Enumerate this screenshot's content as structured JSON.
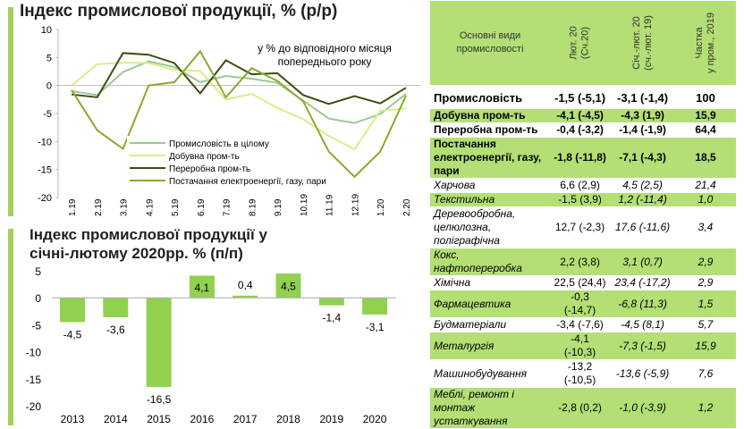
{
  "line_chart_title": "Індекс промислової продукції, % (р/р)",
  "bar_chart_title_line1": "Індекс промислової продукції у",
  "bar_chart_title_line2": "січні-лютому 2020рр. % (п/п)",
  "chart_data": [
    {
      "type": "line",
      "title": "Індекс промислової продукції, % (р/р)",
      "annotation": "у % до відповідного місяця попереднього року",
      "annotation_line1": "у % до відповідного місяця",
      "annotation_line2": "попереднього року",
      "x": [
        "1.19",
        "2.19",
        "3.19",
        "4.19",
        "5.19",
        "6.19",
        "7.19",
        "8.19",
        "9.19",
        "10.19",
        "11.19",
        "12.19",
        "1.20",
        "2.20"
      ],
      "ylim": [
        -20,
        10
      ],
      "yticks": [
        10,
        5,
        0,
        -5,
        -10,
        -15,
        -20
      ],
      "legend": "center-left",
      "series": [
        {
          "name": "Промисловість в цілому",
          "color": "#9dc98f",
          "values": [
            -1.0,
            -1.7,
            2.4,
            4.3,
            3.3,
            0.6,
            1.7,
            1.2,
            0.5,
            -2.7,
            -5.9,
            -6.7,
            -5.1,
            -1.5
          ]
        },
        {
          "name": "Добувна пром-ть",
          "color": "#d7ef8a",
          "values": [
            0.0,
            3.8,
            4.1,
            4.0,
            2.8,
            2.6,
            -2.5,
            -1.5,
            -4.0,
            -6.0,
            -9.0,
            -11.4,
            -4.5,
            -4.1
          ]
        },
        {
          "name": "Переробна пром-ть",
          "color": "#3b4d12",
          "values": [
            -1.6,
            -2.1,
            5.8,
            5.5,
            4.0,
            -1.4,
            4.5,
            2.0,
            2.2,
            -1.7,
            -3.3,
            -1.9,
            -3.2,
            -0.4
          ]
        },
        {
          "name": "Постачання електроенергії, газу, пари",
          "color": "#8aaa2c",
          "values": [
            -0.8,
            -8.0,
            -11.3,
            0.0,
            0.6,
            6.1,
            -2.1,
            3.1,
            0.8,
            -2.8,
            -11.8,
            -16.3,
            -11.8,
            -1.8
          ]
        }
      ]
    },
    {
      "type": "bar",
      "title": "Індекс промислової продукції у січні-лютому 2020рр. % (п/п)",
      "categories": [
        "2013",
        "2014",
        "2015",
        "2016",
        "2017",
        "2018",
        "2019",
        "2020"
      ],
      "values": [
        -4.5,
        -3.6,
        -16.5,
        4.1,
        0.4,
        4.5,
        -1.4,
        -3.1
      ],
      "labels": [
        "-4,5",
        "-3,6",
        "-16,5",
        "4,1",
        "0,4",
        "4,5",
        "-1,4",
        "-3,1"
      ],
      "ylim": [
        -20,
        5
      ],
      "yticks": [
        5,
        0,
        -5,
        -10,
        -15,
        -20
      ],
      "color": "#92d050"
    }
  ],
  "table": {
    "headers": [
      "Основні види промисловості",
      "Лют. 20\n(Сч.20)",
      "Січ.-лют. 20\n(сч.-лют. 19)",
      "Частка\nу пром., 2019"
    ],
    "rows": [
      {
        "name": "Промисловість",
        "c1": "-1,5 (-5,1)",
        "c2": "-3,1 (-1,4)",
        "c3": "100",
        "style": "b",
        "bg": "w"
      },
      {
        "name": "Добувна пром-ть",
        "c1": "-4,1 (-4,5)",
        "c2": "-4,3 (1,9)",
        "c3": "15,9",
        "style": "b",
        "bg": "g"
      },
      {
        "name": "Переробна пром-ть",
        "c1": "-0,4 (-3,2)",
        "c2": "-1,4 (-1,9)",
        "c3": "64,4",
        "style": "b",
        "bg": "w"
      },
      {
        "name": "Постачання електроенергії, газу, пари",
        "c1": "-1,8 (-11,8)",
        "c2": "-7,1 (-4,3)",
        "c3": "18,5",
        "style": "b",
        "bg": "g"
      },
      {
        "name": "Харчова",
        "c1": "6,6 (2,9)",
        "c2": "4,5 (2,5)",
        "c3": "21,4",
        "style": "i",
        "bg": "w"
      },
      {
        "name": "Текстильна",
        "c1": "-1,5 (3,9)",
        "c2": "1,2 (-11,4)",
        "c3": "1,0",
        "style": "i",
        "bg": "g"
      },
      {
        "name": "Деревообробна, целюлозна, поліграфічна",
        "c1": "12,7 (-2,3)",
        "c2": "17,6 (-11,6)",
        "c3": "3,4",
        "style": "i",
        "bg": "w"
      },
      {
        "name": "Кокс, нафтопереробка",
        "c1": "2,2 (3,8)",
        "c2": "3,1 (0,7)",
        "c3": "2,9",
        "style": "i",
        "bg": "g"
      },
      {
        "name": "Хімічна",
        "c1": "22,5 (24,4)",
        "c2": "23,4 (-17,2)",
        "c3": "2,9",
        "style": "i",
        "bg": "w"
      },
      {
        "name": "Фармацевтика",
        "c1": "-0,3 (-14,7)",
        "c2": "-6,8 (11,3)",
        "c3": "1,5",
        "style": "i",
        "bg": "g"
      },
      {
        "name": "Будматеріали",
        "c1": "-3,4 (-7,6)",
        "c2": "-4,5 (8,1)",
        "c3": "5,7",
        "style": "i",
        "bg": "w"
      },
      {
        "name": "Металургія",
        "c1": "-4,1 (-10,3)",
        "c2": "-7,3 (-1,5)",
        "c3": "15,9",
        "style": "i",
        "bg": "g"
      },
      {
        "name": "Машинобудування",
        "c1": "-13,2 (-10,5)",
        "c2": "-13,6 (-5,9)",
        "c3": "7,6",
        "style": "i",
        "bg": "w"
      },
      {
        "name": "Меблі, ремонт і монтаж устаткування",
        "c1": "-2,8 (0,2)",
        "c2": "-1,0 (-3,9)",
        "c3": "1,2",
        "style": "i",
        "bg": "g"
      }
    ]
  }
}
